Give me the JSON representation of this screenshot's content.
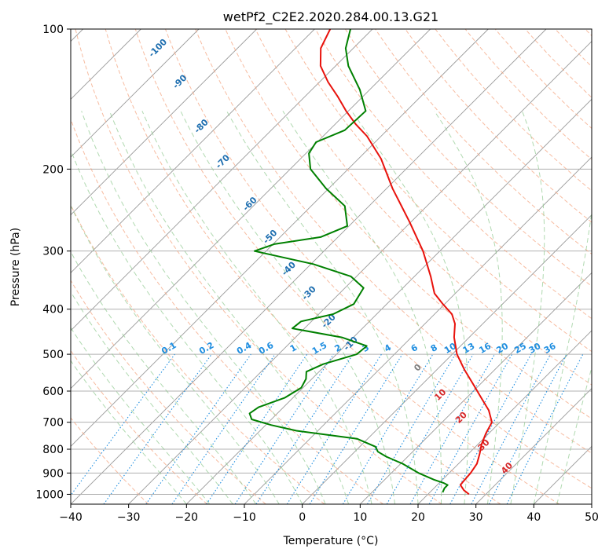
{
  "chart_data": {
    "type": "line",
    "subtype": "skew-t log-p diagram",
    "title": "wetPf2_C2E2.2020.284.00.13.G21",
    "xlabel": "Temperature (°C)",
    "ylabel": "Pressure (hPa)",
    "xlim": [
      -40,
      50
    ],
    "ylim": [
      1050,
      100
    ],
    "y_scale": "log",
    "x_ticks": [
      -40,
      -30,
      -20,
      -10,
      0,
      10,
      20,
      30,
      40,
      50
    ],
    "x_tick_labels": [
      "−40",
      "−30",
      "−20",
      "−10",
      "0",
      "10",
      "20",
      "30",
      "40",
      "50"
    ],
    "y_ticks": [
      100,
      200,
      300,
      400,
      500,
      600,
      700,
      800,
      900,
      1000
    ],
    "y_tick_labels": [
      "100",
      "200",
      "300",
      "400",
      "500",
      "600",
      "700",
      "800",
      "900",
      "1000"
    ],
    "grid": true,
    "colors": {
      "temperature": "#e8120c",
      "dewpoint": "#008000",
      "isotherm": "#999999",
      "dry_adiabat": "#f4a582",
      "moist_adiabat": "#8fc98f",
      "mixing_ratio": "#1f8ee0",
      "annotation_temp": "#1f6fb0",
      "annotation_dry": "#d62728"
    },
    "series": [
      {
        "key": "temperature",
        "color": "#e8120c",
        "points": [
          {
            "p": 1000,
            "t": 27.1
          },
          {
            "p": 980,
            "t": 25.5
          },
          {
            "p": 955,
            "t": 24.0
          },
          {
            "p": 940,
            "t": 23.9
          },
          {
            "p": 900,
            "t": 23.7
          },
          {
            "p": 860,
            "t": 23.2
          },
          {
            "p": 820,
            "t": 22.0
          },
          {
            "p": 780,
            "t": 20.6
          },
          {
            "p": 740,
            "t": 19.5
          },
          {
            "p": 700,
            "t": 18.6
          },
          {
            "p": 660,
            "t": 16.0
          },
          {
            "p": 620,
            "t": 12.5
          },
          {
            "p": 580,
            "t": 8.8
          },
          {
            "p": 540,
            "t": 4.8
          },
          {
            "p": 500,
            "t": 0.8
          },
          {
            "p": 460,
            "t": -2.6
          },
          {
            "p": 430,
            "t": -4.8
          },
          {
            "p": 410,
            "t": -7.0
          },
          {
            "p": 390,
            "t": -10.3
          },
          {
            "p": 370,
            "t": -13.6
          },
          {
            "p": 340,
            "t": -17.2
          },
          {
            "p": 300,
            "t": -22.9
          },
          {
            "p": 260,
            "t": -30.2
          },
          {
            "p": 220,
            "t": -39.0
          },
          {
            "p": 190,
            "t": -46.1
          },
          {
            "p": 170,
            "t": -52.4
          },
          {
            "p": 160,
            "t": -56.5
          },
          {
            "p": 150,
            "t": -60.4
          },
          {
            "p": 140,
            "t": -64.2
          },
          {
            "p": 130,
            "t": -68.5
          },
          {
            "p": 120,
            "t": -72.6
          },
          {
            "p": 110,
            "t": -75.6
          },
          {
            "p": 100,
            "t": -77.3
          }
        ]
      },
      {
        "key": "dewpoint",
        "color": "#008000",
        "points": [
          {
            "p": 990,
            "t": 22.2
          },
          {
            "p": 970,
            "t": 21.8
          },
          {
            "p": 955,
            "t": 21.8
          },
          {
            "p": 945,
            "t": 20.7
          },
          {
            "p": 930,
            "t": 18.5
          },
          {
            "p": 900,
            "t": 14.7
          },
          {
            "p": 860,
            "t": 10.4
          },
          {
            "p": 830,
            "t": 6.3
          },
          {
            "p": 810,
            "t": 4.0
          },
          {
            "p": 790,
            "t": 2.7
          },
          {
            "p": 760,
            "t": -1.8
          },
          {
            "p": 730,
            "t": -13.7
          },
          {
            "p": 710,
            "t": -19.0
          },
          {
            "p": 690,
            "t": -23.4
          },
          {
            "p": 670,
            "t": -24.8
          },
          {
            "p": 650,
            "t": -24.3
          },
          {
            "p": 620,
            "t": -21.4
          },
          {
            "p": 590,
            "t": -20.3
          },
          {
            "p": 565,
            "t": -21.0
          },
          {
            "p": 545,
            "t": -22.2
          },
          {
            "p": 525,
            "t": -20.6
          },
          {
            "p": 500,
            "t": -16.5
          },
          {
            "p": 480,
            "t": -16.2
          },
          {
            "p": 460,
            "t": -22.0
          },
          {
            "p": 440,
            "t": -32.1
          },
          {
            "p": 425,
            "t": -31.8
          },
          {
            "p": 410,
            "t": -27.5
          },
          {
            "p": 390,
            "t": -25.7
          },
          {
            "p": 360,
            "t": -26.8
          },
          {
            "p": 340,
            "t": -31.0
          },
          {
            "p": 320,
            "t": -39.6
          },
          {
            "p": 300,
            "t": -52.0
          },
          {
            "p": 290,
            "t": -49.8
          },
          {
            "p": 280,
            "t": -43.0
          },
          {
            "p": 265,
            "t": -40.3
          },
          {
            "p": 240,
            "t": -44.2
          },
          {
            "p": 220,
            "t": -50.5
          },
          {
            "p": 200,
            "t": -56.5
          },
          {
            "p": 185,
            "t": -59.5
          },
          {
            "p": 175,
            "t": -60.2
          },
          {
            "p": 165,
            "t": -57.3
          },
          {
            "p": 150,
            "t": -57.0
          },
          {
            "p": 135,
            "t": -61.7
          },
          {
            "p": 120,
            "t": -67.8
          },
          {
            "p": 110,
            "t": -71.3
          },
          {
            "p": 100,
            "t": -73.8
          }
        ]
      }
    ],
    "moist_adiabat_labels": [
      {
        "text": "-100",
        "x": -24.9,
        "p": 110
      },
      {
        "text": "-90",
        "x": -21.1,
        "p": 130
      },
      {
        "text": "-80",
        "x": -17.4,
        "p": 162
      },
      {
        "text": "-70",
        "x": -13.7,
        "p": 193
      },
      {
        "text": "-60",
        "x": -9.0,
        "p": 238
      },
      {
        "text": "-50",
        "x": -5.5,
        "p": 280
      },
      {
        "text": "-40",
        "x": -2.3,
        "p": 328
      },
      {
        "text": "-30",
        "x": 1.2,
        "p": 370
      },
      {
        "text": "-20",
        "x": 4.6,
        "p": 425
      },
      {
        "text": "-10",
        "x": 8.4,
        "p": 475
      }
    ],
    "dry_adiabat_labels": [
      {
        "text": "0",
        "x": 20.0,
        "p": 535
      },
      {
        "text": "10",
        "x": 23.9,
        "p": 612
      },
      {
        "text": "20",
        "x": 27.5,
        "p": 685
      },
      {
        "text": "30",
        "x": 31.4,
        "p": 785
      },
      {
        "text": "40",
        "x": 35.4,
        "p": 880
      }
    ],
    "mixing_ratio_labels": [
      {
        "text": "0.1",
        "t": -23.0
      },
      {
        "text": "0.2",
        "t": -16.5
      },
      {
        "text": "0.4",
        "t": -10.0
      },
      {
        "text": "0.6",
        "t": -6.2
      },
      {
        "text": "1",
        "t": -1.5
      },
      {
        "text": "1.5",
        "t": 3.0
      },
      {
        "text": "2",
        "t": 6.2
      },
      {
        "text": "3",
        "t": 11.0
      },
      {
        "text": "4",
        "t": 14.8
      },
      {
        "text": "6",
        "t": 19.4
      },
      {
        "text": "8",
        "t": 22.8
      },
      {
        "text": "10",
        "t": 25.6
      },
      {
        "text": "13",
        "t": 28.8
      },
      {
        "text": "16",
        "t": 31.6
      },
      {
        "text": "20",
        "t": 34.6
      },
      {
        "text": "25",
        "t": 37.7
      },
      {
        "text": "30",
        "t": 40.2
      },
      {
        "text": "36",
        "t": 42.8
      }
    ],
    "mixing_ratio_values": [
      0.1,
      0.2,
      0.4,
      0.6,
      1,
      1.5,
      2,
      3,
      4,
      6,
      8,
      10,
      13,
      16,
      20,
      25,
      30,
      36
    ],
    "mixing_ratio_label_pressure": 490,
    "mixing_ratio_bottom_pressure": 1050
  }
}
